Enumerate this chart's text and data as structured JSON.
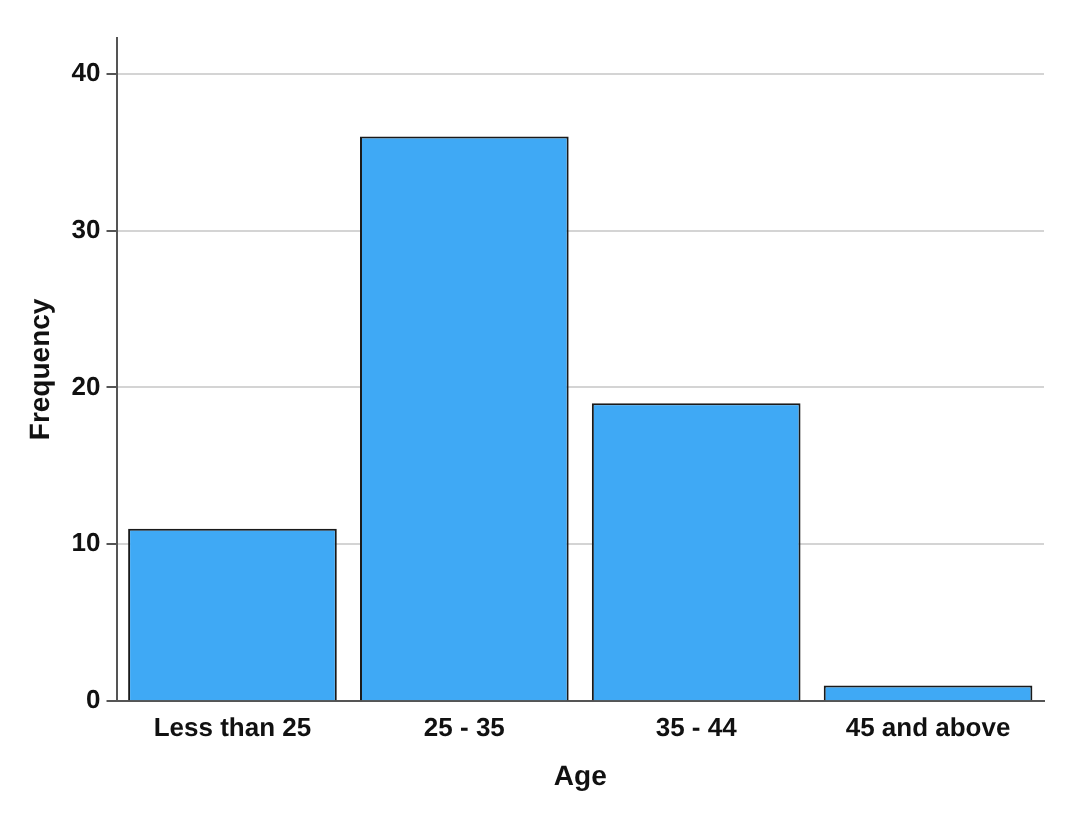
{
  "chart_data": {
    "type": "bar",
    "xlabel": "Age",
    "ylabel": "Frequency",
    "categories": [
      "Less than 25",
      "25 - 35",
      "35 - 44",
      "45 and above"
    ],
    "values": [
      11,
      36,
      19,
      1
    ],
    "color": "#3fa9f5",
    "ylim": [
      0,
      42.3
    ],
    "yticks": [
      0,
      10,
      20,
      30,
      40
    ],
    "grid": "y",
    "legend": false
  }
}
